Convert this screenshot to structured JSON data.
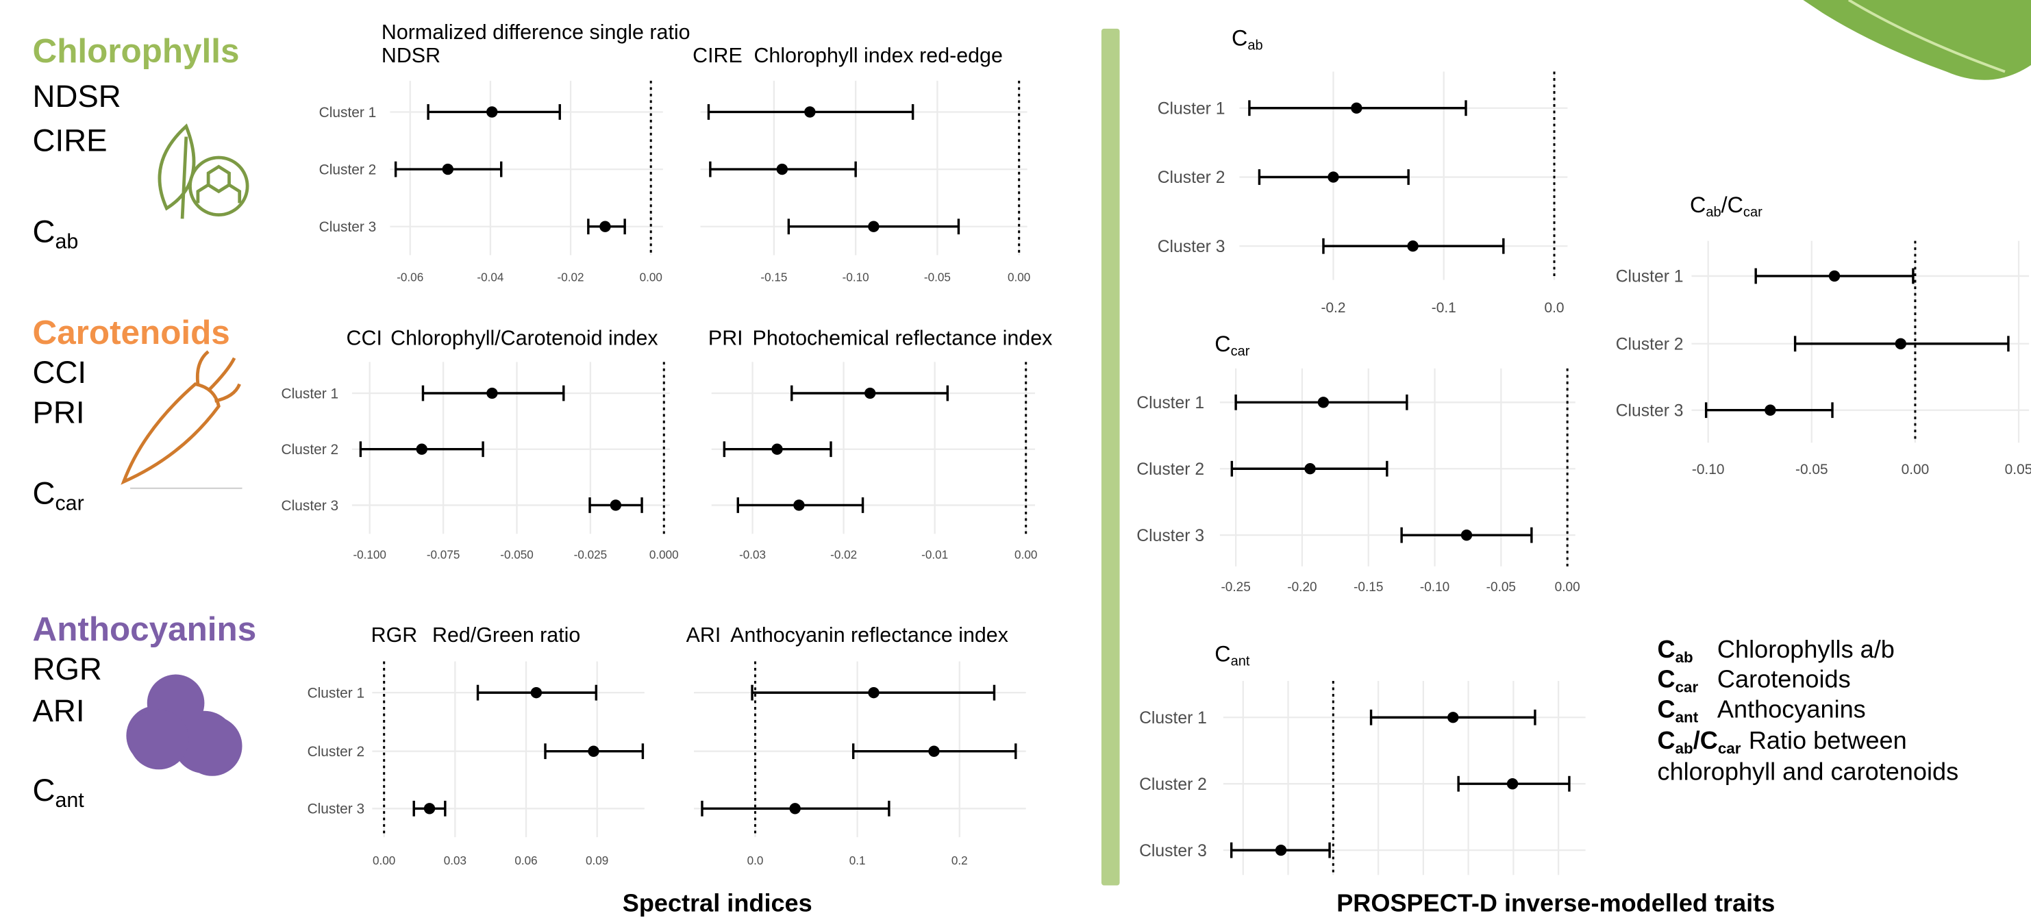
{
  "groups": [
    {
      "name": "Chlorophylls",
      "color": "#9bbb59",
      "indices": [
        "NDSR",
        "CIRE"
      ],
      "trait": {
        "text": "C",
        "sub": "ab"
      }
    },
    {
      "name": "Carotenoids",
      "color": "#f39248",
      "indices": [
        "CCI",
        "PRI"
      ],
      "trait": {
        "text": "C",
        "sub": "car"
      }
    },
    {
      "name": "Anthocyanins",
      "color": "#7d5fa8",
      "indices": [
        "RGR",
        "ARI"
      ],
      "trait": {
        "text": "C",
        "sub": "ant"
      }
    }
  ],
  "section_titles": [
    "Spectral indices",
    "PROSPECT-D inverse-modelled traits"
  ],
  "legend": [
    {
      "symbol": [
        {
          "text": "C",
          "sub": "ab"
        }
      ],
      "text": "Chlorophylls a/b"
    },
    {
      "symbol": [
        {
          "text": "C",
          "sub": "car"
        }
      ],
      "text": "Carotenoids"
    },
    {
      "symbol": [
        {
          "text": "C",
          "sub": "ant"
        }
      ],
      "text": "Anthocyanins"
    },
    {
      "symbol": [
        {
          "text": "C",
          "sub": "ab"
        },
        {
          "text": "/C",
          "sub": "car"
        }
      ],
      "text": "Ratio between",
      "text2": "chlorophyll and carotenoids"
    }
  ],
  "chart_data": [
    {
      "type": "errorbar",
      "abbreviation": "NDSR",
      "title": "Normalized difference single ratio",
      "categories": [
        "Cluster 1",
        "Cluster 2",
        "Cluster 3"
      ],
      "values": [
        -0.0396,
        -0.0506,
        -0.0114
      ],
      "lower": [
        -0.0555,
        -0.0636,
        -0.0156
      ],
      "upper": [
        -0.0227,
        -0.0373,
        -0.0065
      ],
      "xlim": [
        -0.065,
        0.003
      ],
      "xticks": [
        -0.06,
        -0.04,
        -0.02,
        {
          "value": 0,
          "label": "0.00"
        }
      ],
      "reference_line": 0,
      "grid": true,
      "color": "#000000"
    },
    {
      "type": "errorbar",
      "abbreviation": "CIRE",
      "title": "Chlorophyll index red-edge",
      "values": [
        -0.128,
        -0.145,
        -0.089
      ],
      "lower": [
        -0.19,
        -0.189,
        -0.141
      ],
      "upper": [
        -0.065,
        -0.1,
        -0.037
      ],
      "xlim": [
        -0.195,
        0.005
      ],
      "xticks": [
        -0.15,
        {
          "value": -0.1,
          "label": "-0.10"
        },
        -0.05,
        {
          "value": 0,
          "label": "0.00"
        }
      ],
      "reference_line": 0,
      "grid": true,
      "color": "#000000"
    },
    {
      "type": "errorbar",
      "abbreviation": "CCI",
      "title": "Chlorophyll/Carotenoid index",
      "categories": [
        "Cluster 1",
        "Cluster 2",
        "Cluster 3"
      ],
      "values": [
        -0.0584,
        -0.0823,
        -0.0164
      ],
      "lower": [
        -0.0819,
        -0.1031,
        -0.0252
      ],
      "upper": [
        -0.0341,
        -0.0615,
        -0.0075
      ],
      "xlim": [
        -0.106,
        0.002
      ],
      "xticks": [
        {
          "value": -0.1,
          "label": "-0.100"
        },
        -0.075,
        {
          "value": -0.05,
          "label": "-0.050"
        },
        -0.025,
        {
          "value": 0,
          "label": "0.000"
        }
      ],
      "reference_line": 0,
      "grid": true,
      "color": "#000000"
    },
    {
      "type": "errorbar",
      "abbreviation": "PRI",
      "title": "Photochemical reflectance index",
      "values": [
        -0.0171,
        -0.0273,
        -0.0249
      ],
      "lower": [
        -0.0257,
        -0.0331,
        -0.0316
      ],
      "upper": [
        -0.0086,
        -0.0214,
        -0.0179
      ],
      "xlim": [
        -0.0345,
        0.001
      ],
      "xticks": [
        -0.03,
        -0.02,
        -0.01,
        {
          "value": 0,
          "label": "0.00"
        }
      ],
      "reference_line": 0,
      "grid": true,
      "color": "#000000"
    },
    {
      "type": "errorbar",
      "abbreviation": "RGR",
      "title": "Red/Green ratio",
      "categories": [
        "Cluster 1",
        "Cluster 2",
        "Cluster 3"
      ],
      "values": [
        0.0643,
        0.0885,
        0.0192
      ],
      "lower": [
        0.0396,
        0.0681,
        0.0126
      ],
      "upper": [
        0.0896,
        0.1093,
        0.0258
      ],
      "xlim": [
        -0.005,
        0.11
      ],
      "xticks": [
        {
          "value": 0,
          "label": "0.00"
        },
        0.03,
        0.06,
        0.09
      ],
      "reference_line": 0,
      "grid": true,
      "color": "#000000"
    },
    {
      "type": "errorbar",
      "abbreviation": "ARI",
      "title": "Anthocyanin reflectance index",
      "values": [
        0.116,
        0.175,
        0.039
      ],
      "lower": [
        -0.003,
        0.096,
        -0.052
      ],
      "upper": [
        0.234,
        0.255,
        0.131
      ],
      "xlim": [
        -0.06,
        0.265
      ],
      "xticks": [
        {
          "value": 0,
          "label": "0.0"
        },
        0.1,
        0.2
      ],
      "reference_line": 0,
      "grid": true,
      "color": "#000000"
    },
    {
      "type": "errorbar",
      "title_parts": [
        {
          "text": "C",
          "sub": "ab"
        }
      ],
      "categories": [
        "Cluster 1",
        "Cluster 2",
        "Cluster 3"
      ],
      "values": [
        -0.179,
        -0.2,
        -0.128
      ],
      "lower": [
        -0.276,
        -0.267,
        -0.209
      ],
      "upper": [
        -0.08,
        -0.132,
        -0.046
      ],
      "xlim": [
        -0.285,
        0.012
      ],
      "xticks": [
        -0.2,
        -0.1,
        {
          "value": 0,
          "label": "0.0"
        }
      ],
      "reference_line": 0,
      "grid": true,
      "color": "#000000"
    },
    {
      "type": "errorbar",
      "title_parts": [
        {
          "text": "C",
          "sub": "car"
        }
      ],
      "categories": [
        "Cluster 1",
        "Cluster 2",
        "Cluster 3"
      ],
      "values": [
        -0.184,
        -0.194,
        -0.076
      ],
      "lower": [
        -0.25,
        -0.253,
        -0.125
      ],
      "upper": [
        -0.121,
        -0.136,
        -0.027
      ],
      "xlim": [
        -0.262,
        0.006
      ],
      "xticks": [
        -0.25,
        {
          "value": -0.2,
          "label": "-0.20"
        },
        -0.15,
        {
          "value": -0.1,
          "label": "-0.10"
        },
        -0.05,
        {
          "value": 0,
          "label": "0.00"
        }
      ],
      "reference_line": 0,
      "grid": true,
      "color": "#000000"
    },
    {
      "type": "errorbar",
      "title_parts": [
        {
          "text": "C",
          "sub": "ant"
        }
      ],
      "categories": [
        "Cluster 1",
        "Cluster 2",
        "Cluster 3"
      ],
      "values": [
        0.133,
        0.199,
        -0.058
      ],
      "lower": [
        0.042,
        0.139,
        -0.113
      ],
      "upper": [
        0.224,
        0.262,
        -0.004
      ],
      "xlim": [
        -0.122,
        0.28
      ],
      "xgrid": [
        -0.1,
        -0.05,
        0,
        0.05,
        0.1,
        0.15,
        0.2,
        0.25
      ],
      "reference_line": 0,
      "grid": true,
      "color": "#000000"
    },
    {
      "type": "errorbar",
      "title_parts": [
        {
          "text": "C",
          "sub": "ab"
        },
        {
          "text": "/C",
          "sub": "car"
        }
      ],
      "categories": [
        "Cluster 1",
        "Cluster 2",
        "Cluster 3"
      ],
      "values": [
        -0.039,
        -0.007,
        -0.07
      ],
      "lower": [
        -0.077,
        -0.058,
        -0.101
      ],
      "upper": [
        -0.001,
        0.045,
        -0.04
      ],
      "xlim": [
        -0.108,
        0.055
      ],
      "xticks": [
        {
          "value": -0.1,
          "label": "-0.10"
        },
        -0.05,
        {
          "value": 0,
          "label": "0.00"
        },
        0.05
      ],
      "reference_line": 0,
      "grid": true,
      "color": "#000000"
    }
  ]
}
